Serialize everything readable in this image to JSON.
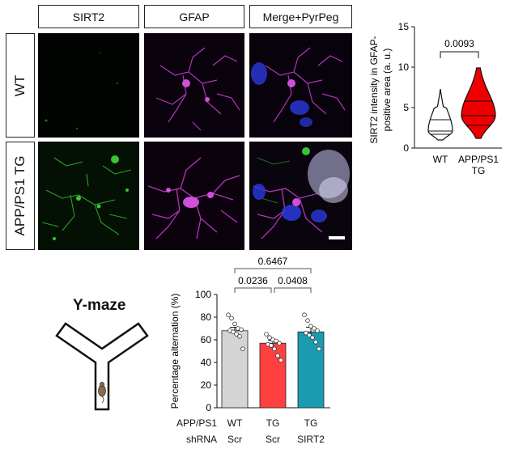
{
  "figure": {
    "column_headers": [
      "SIRT2",
      "GFAP",
      "Merge+PyrPeg"
    ],
    "row_labels": [
      "WT",
      "APP/PS1 TG"
    ]
  },
  "chart_data": [
    {
      "type": "violin",
      "ylabel": "SIRT2 intensity in GFAP-positive area (a. u.)",
      "ylabel_lines": [
        "SIRT2 intensity in GFAP-",
        "positive area (a. u.)"
      ],
      "ylim": [
        0,
        15
      ],
      "yticks": [
        "0",
        "5",
        "10",
        "15"
      ],
      "categories": [
        "WT",
        "APP/PS1 TG"
      ],
      "category_lines": [
        [
          "WT"
        ],
        [
          "APP/PS1",
          "TG"
        ]
      ],
      "groups": [
        {
          "name": "WT",
          "min": 1.0,
          "q1": 1.7,
          "median": 2.1,
          "q3": 3.5,
          "max": 7.2,
          "color": "#ffffff"
        },
        {
          "name": "APP/PS1 TG",
          "min": 1.2,
          "q1": 2.8,
          "median": 4.0,
          "q3": 5.8,
          "max": 9.9,
          "color": "#ee0000"
        }
      ],
      "significance": [
        {
          "pair": [
            0,
            1
          ],
          "label": "0.0093"
        }
      ]
    },
    {
      "type": "bar",
      "title": "Y-maze",
      "ylabel": "Percentage alternation (%)",
      "ylim": [
        0,
        100
      ],
      "yticks": [
        "0",
        "20",
        "40",
        "60",
        "80",
        "100"
      ],
      "row_names": [
        "APP/PS1",
        "shRNA"
      ],
      "categories": [
        [
          "WT",
          "Scr"
        ],
        [
          "TG",
          "Scr"
        ],
        [
          "TG",
          "SIRT2"
        ]
      ],
      "values": [
        68,
        57,
        67
      ],
      "errors": [
        3,
        2.5,
        4
      ],
      "colors": [
        "#d4d4d4",
        "#ff4040",
        "#1a9bb0"
      ],
      "points": [
        [
          82,
          79,
          74,
          70,
          69,
          68,
          67,
          65,
          63,
          52
        ],
        [
          65,
          62,
          60,
          59,
          57,
          56,
          55,
          52,
          46,
          42
        ],
        [
          82,
          77,
          72,
          70,
          68,
          66,
          64,
          62,
          58,
          52
        ]
      ],
      "significance": [
        {
          "pair": [
            0,
            2
          ],
          "label": "0.6467"
        },
        {
          "pair": [
            0,
            1
          ],
          "label": "0.0236"
        },
        {
          "pair": [
            1,
            2
          ],
          "label": "0.0408"
        }
      ]
    }
  ]
}
